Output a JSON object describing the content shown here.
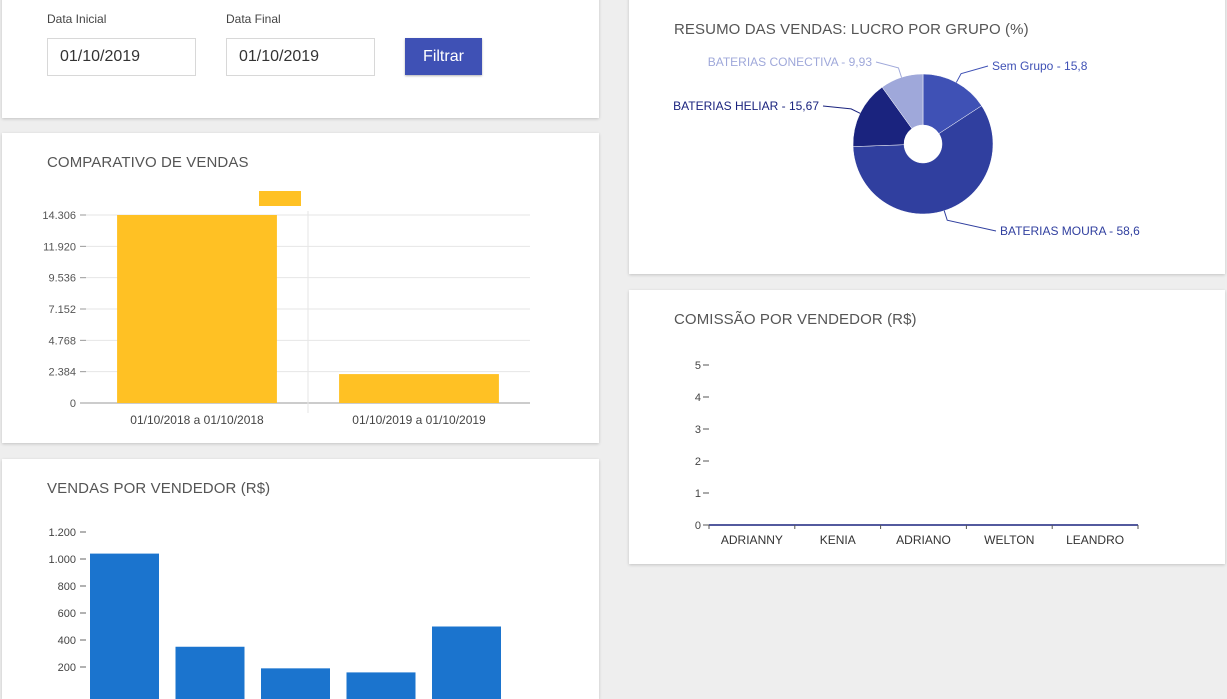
{
  "filters": {
    "start_label": "Data Inicial",
    "start_value": "01/10/2019",
    "end_label": "Data Final",
    "end_value": "01/10/2019",
    "filter_button": "Filtrar"
  },
  "colors": {
    "comparativo": "#FFC124",
    "vendedor": "#1B74CE",
    "pie": [
      "#3F51B5",
      "#303F9F",
      "#1A237E",
      "#9FA8DA"
    ],
    "primary": "#3F51B5"
  },
  "chart_data": [
    {
      "id": "comparativo",
      "type": "bar",
      "title": "COMPARATIVO DE VENDAS",
      "categories": [
        "01/10/2018 a 01/10/2018",
        "01/10/2019 a 01/10/2019"
      ],
      "values": [
        14306,
        2200
      ],
      "yticks": [
        "0",
        "2.384",
        "4.768",
        "7.152",
        "9.536",
        "11.920",
        "14.306"
      ],
      "ylim": [
        0,
        14306
      ],
      "grid": true,
      "legend": "top"
    },
    {
      "id": "lucro",
      "type": "pie",
      "title": "RESUMO DAS VENDAS: LUCRO POR GRUPO (%)",
      "labels": [
        "Sem Grupo - 15,8",
        "BATERIAS MOURA - 58,6",
        "BATERIAS HELIAR - 15,67",
        "BATERIAS CONECTIVA - 9,93"
      ],
      "values": [
        15.8,
        58.6,
        15.67,
        9.93
      ]
    },
    {
      "id": "vendas_vendedor",
      "type": "bar",
      "title": "VENDAS POR VENDEDOR (R$)",
      "values": [
        1040,
        350,
        190,
        160,
        500
      ],
      "yticks": [
        "200",
        "400",
        "600",
        "800",
        "1.000",
        "1.200"
      ],
      "ylim": [
        0,
        1200
      ]
    },
    {
      "id": "comissao",
      "type": "bar",
      "title": "COMISSÃO POR VENDEDOR (R$)",
      "categories": [
        "ADRIANNY",
        "KENIA",
        "ADRIANO",
        "WELTON",
        "LEANDRO"
      ],
      "values": [
        0,
        0,
        0,
        0,
        0
      ],
      "yticks": [
        "0",
        "1",
        "2",
        "3",
        "4",
        "5"
      ],
      "ylim": [
        0,
        5
      ]
    }
  ]
}
